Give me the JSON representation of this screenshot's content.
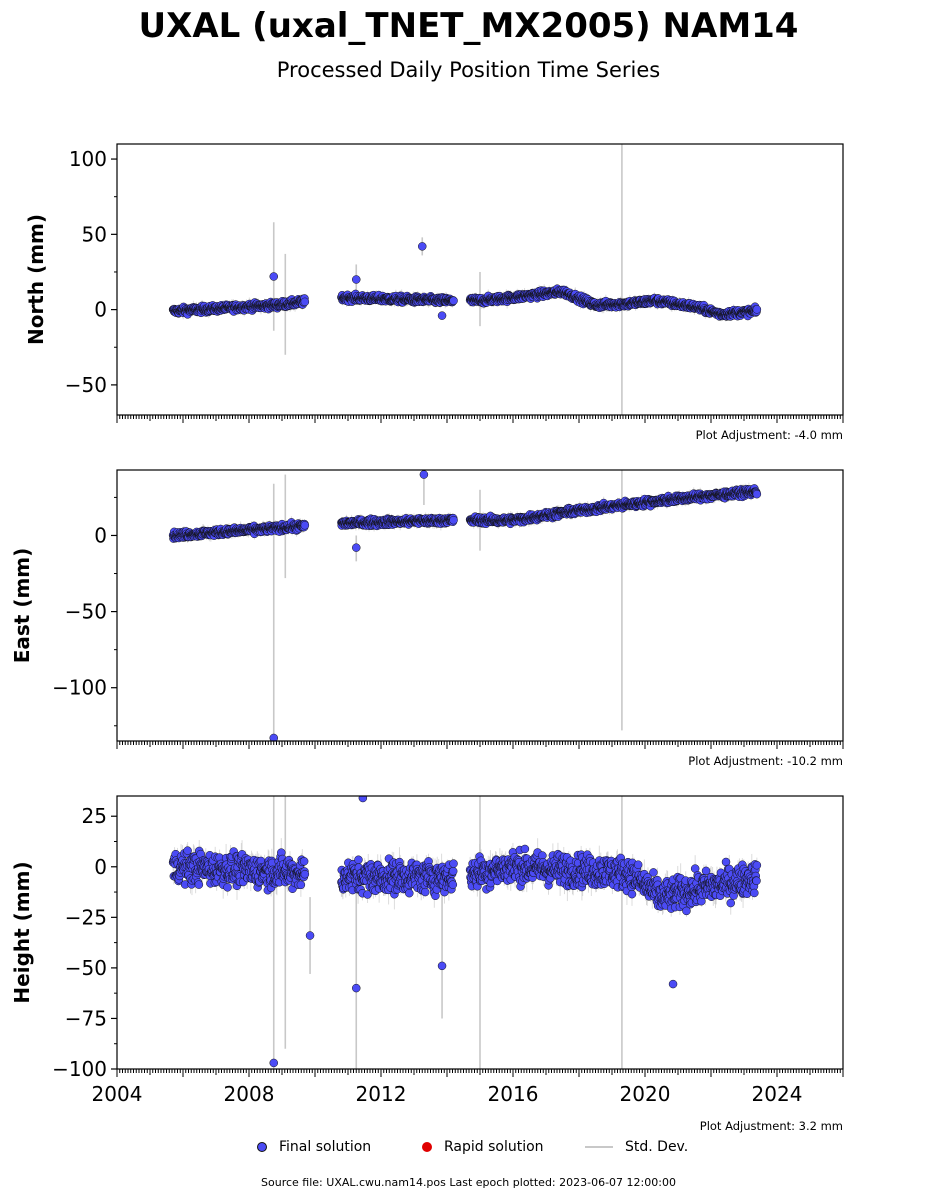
{
  "title": "UXAL (uxal_TNET_MX2005) NAM14",
  "subtitle": "Processed Daily Position Time Series",
  "source_text": "Source file: UXAL.cwu.nam14.pos  Last epoch plotted: 2023-06-07 12:00:00",
  "legend": {
    "final_label": "Final solution",
    "rapid_label": "Rapid solution",
    "std_label": "Std. Dev."
  },
  "colors": {
    "final": "#4b4bf5",
    "rapid": "#e00000",
    "std": "#c8c8c8",
    "edge": "#111111"
  },
  "chart_data": [
    {
      "type": "scatter",
      "name": "north",
      "ylabel": "North (mm)",
      "xlim": [
        2004,
        2026
      ],
      "ylim": [
        -70,
        110
      ],
      "yticks": [
        -50,
        0,
        50,
        100
      ],
      "xticks": [
        2004,
        2008,
        2012,
        2016,
        2020,
        2024
      ],
      "adjustment": "Plot Adjustment: -4.0 mm",
      "segments": [
        [
          2005.7,
          2009.7
        ],
        [
          2010.8,
          2014.2
        ],
        [
          2014.7,
          2023.4
        ]
      ],
      "trend": [
        [
          2005.7,
          -1
        ],
        [
          2008.8,
          3
        ],
        [
          2009.6,
          5
        ],
        [
          2010.8,
          8
        ],
        [
          2014.0,
          6
        ],
        [
          2015.0,
          6
        ],
        [
          2016.0,
          8
        ],
        [
          2017.5,
          12
        ],
        [
          2018.5,
          3
        ],
        [
          2019.5,
          4
        ],
        [
          2020.3,
          6
        ],
        [
          2021.5,
          2
        ],
        [
          2022.3,
          -3
        ],
        [
          2023.4,
          -1
        ]
      ],
      "noise": 2.5,
      "errbar": 3,
      "outliers": [
        [
          2008.75,
          22
        ],
        [
          2011.25,
          20
        ],
        [
          2013.25,
          42
        ],
        [
          2013.85,
          -4
        ]
      ],
      "spikes": [
        [
          2008.75,
          -14,
          58
        ],
        [
          2009.1,
          -30,
          37
        ],
        [
          2015.0,
          -11,
          25
        ],
        [
          2019.3,
          -70,
          110
        ],
        [
          2013.25,
          36,
          48
        ],
        [
          2011.25,
          12,
          30
        ]
      ]
    },
    {
      "type": "scatter",
      "name": "east",
      "ylabel": "East (mm)",
      "xlim": [
        2004,
        2026
      ],
      "ylim": [
        -135,
        43
      ],
      "yticks": [
        -100,
        -50,
        0
      ],
      "xticks": [
        2004,
        2008,
        2012,
        2016,
        2020,
        2024
      ],
      "adjustment": "Plot Adjustment: -10.2 mm",
      "segments": [
        [
          2005.7,
          2009.7
        ],
        [
          2010.8,
          2014.2
        ],
        [
          2014.7,
          2023.4
        ]
      ],
      "trend": [
        [
          2005.7,
          0
        ],
        [
          2009.6,
          6
        ],
        [
          2010.8,
          8
        ],
        [
          2014.0,
          10
        ],
        [
          2016.0,
          10
        ],
        [
          2017.5,
          15
        ],
        [
          2019.0,
          19
        ],
        [
          2020.5,
          23
        ],
        [
          2023.4,
          29
        ]
      ],
      "noise": 2.5,
      "errbar": 3,
      "outliers": [
        [
          2008.75,
          -133
        ],
        [
          2011.25,
          -8
        ],
        [
          2013.3,
          40
        ]
      ],
      "spikes": [
        [
          2008.75,
          -133,
          34
        ],
        [
          2009.1,
          -28,
          40
        ],
        [
          2015.0,
          -10,
          30
        ],
        [
          2019.3,
          -128,
          43
        ],
        [
          2011.25,
          -17,
          0
        ],
        [
          2013.3,
          20,
          40
        ]
      ]
    },
    {
      "type": "scatter",
      "name": "height",
      "ylabel": "Height (mm)",
      "xlim": [
        2004,
        2026
      ],
      "ylim": [
        -100,
        35
      ],
      "yticks": [
        -100,
        -75,
        -50,
        -25,
        0,
        25
      ],
      "xticks": [
        2004,
        2008,
        2012,
        2016,
        2020,
        2024
      ],
      "adjustment": "Plot Adjustment: 3.2 mm",
      "segments": [
        [
          2005.7,
          2009.7
        ],
        [
          2010.8,
          2014.2
        ],
        [
          2014.7,
          2023.4
        ]
      ],
      "trend": [
        [
          2005.7,
          0
        ],
        [
          2009.7,
          -3
        ],
        [
          2010.8,
          -5
        ],
        [
          2014.2,
          -5
        ],
        [
          2016.0,
          0
        ],
        [
          2019.5,
          -3
        ],
        [
          2020.5,
          -15
        ],
        [
          2023.4,
          -5
        ]
      ],
      "noise": 9,
      "errbar": 5,
      "outliers": [
        [
          2008.75,
          -97
        ],
        [
          2009.85,
          -34
        ],
        [
          2011.25,
          -60
        ],
        [
          2011.45,
          34
        ],
        [
          2013.85,
          -49
        ],
        [
          2020.85,
          -58
        ]
      ],
      "spikes": [
        [
          2008.75,
          -100,
          35
        ],
        [
          2009.1,
          -90,
          35
        ],
        [
          2011.25,
          -100,
          5
        ],
        [
          2015.0,
          -100,
          35
        ],
        [
          2019.3,
          -100,
          35
        ],
        [
          2013.85,
          -75,
          0
        ],
        [
          2009.85,
          -53,
          -15
        ]
      ]
    }
  ]
}
